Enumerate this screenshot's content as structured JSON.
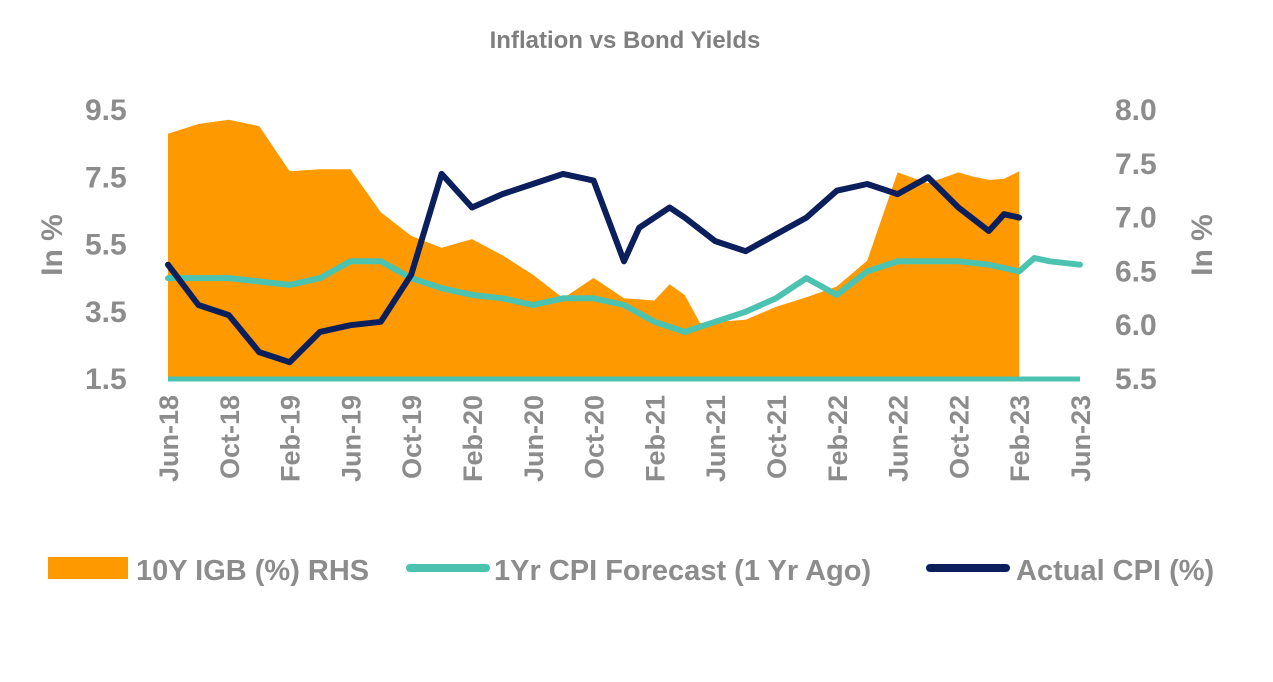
{
  "chart_data": {
    "type": "area+line",
    "title": "Inflation vs Bond Yields",
    "ylabel_left": "In %",
    "ylabel_right": "In %",
    "ylim_left": [
      1.5,
      9.5
    ],
    "ylim_right": [
      5.5,
      8.0
    ],
    "yticks_left": [
      "9.5",
      "7.5",
      "5.5",
      "3.5",
      "1.5"
    ],
    "yticks_right": [
      "8.0",
      "7.5",
      "7.0",
      "6.5",
      "6.0",
      "5.5"
    ],
    "x_tick_labels": [
      "Jun-18",
      "Oct-18",
      "Feb-19",
      "Jun-19",
      "Oct-19",
      "Feb-20",
      "Jun-20",
      "Oct-20",
      "Feb-21",
      "Jun-21",
      "Oct-21",
      "Feb-22",
      "Jun-22",
      "Oct-22",
      "Feb-23",
      "Jun-23"
    ],
    "x_months_index_range": [
      0,
      60
    ],
    "legend_position": "bottom",
    "legend": {
      "igb": "10Y IGB (%) RHS",
      "forecast": "1Yr CPI Forecast (1 Yr Ago)",
      "actual": "Actual CPI (%)"
    },
    "series": [
      {
        "name": "10Y IGB (%) RHS",
        "type": "area",
        "axis": "right",
        "color": "#FF9900",
        "x": [
          0,
          2,
          4,
          6,
          8,
          10,
          12,
          14,
          16,
          18,
          20,
          22,
          24,
          26,
          28,
          30,
          31,
          32,
          33,
          34,
          35,
          36,
          38,
          40,
          42,
          44,
          46,
          48,
          50,
          52,
          53,
          54,
          55,
          56
        ],
        "values": [
          7.78,
          7.87,
          7.91,
          7.85,
          7.43,
          7.45,
          7.45,
          7.05,
          6.83,
          6.72,
          6.8,
          6.65,
          6.47,
          6.25,
          6.44,
          6.25,
          6.24,
          6.23,
          6.38,
          6.28,
          6.02,
          6.03,
          6.05,
          6.17,
          6.26,
          6.36,
          6.6,
          7.42,
          7.32,
          7.42,
          7.38,
          7.35,
          7.36,
          7.43
        ]
      },
      {
        "name": "1Yr CPI Forecast (1 Yr Ago)",
        "type": "line",
        "axis": "left",
        "color": "#4CC3B0",
        "x": [
          0,
          1,
          4,
          8,
          10,
          12,
          14,
          16,
          18,
          20,
          22,
          24,
          26,
          28,
          30,
          32,
          34,
          36,
          38,
          40,
          42,
          44,
          46,
          48,
          50,
          52,
          54,
          55,
          56,
          57,
          58,
          60
        ],
        "values": [
          4.5,
          4.5,
          4.5,
          4.3,
          4.5,
          5.0,
          5.0,
          4.5,
          4.2,
          4.0,
          3.9,
          3.7,
          3.9,
          3.9,
          3.7,
          3.2,
          2.9,
          3.2,
          3.5,
          3.9,
          4.5,
          4.0,
          4.7,
          5.0,
          5.0,
          5.0,
          4.9,
          4.8,
          4.7,
          5.1,
          5.0,
          4.9
        ]
      },
      {
        "name": "Actual CPI (%)",
        "type": "line",
        "axis": "left",
        "color": "#0B1F5C",
        "x": [
          0,
          2,
          4,
          6,
          8,
          10,
          12,
          14,
          16,
          18,
          20,
          22,
          24,
          26,
          28,
          30,
          31,
          32,
          33,
          34,
          36,
          38,
          40,
          42,
          44,
          46,
          48,
          50,
          52,
          54,
          55,
          56
        ],
        "values": [
          4.9,
          3.7,
          3.4,
          2.3,
          2.0,
          2.9,
          3.1,
          3.2,
          4.6,
          7.6,
          6.6,
          7.0,
          7.3,
          7.6,
          7.4,
          5.0,
          6.0,
          6.3,
          6.6,
          6.3,
          5.6,
          5.3,
          5.8,
          6.3,
          7.1,
          7.3,
          7.0,
          7.5,
          6.6,
          5.9,
          6.4,
          6.3
        ]
      }
    ]
  }
}
